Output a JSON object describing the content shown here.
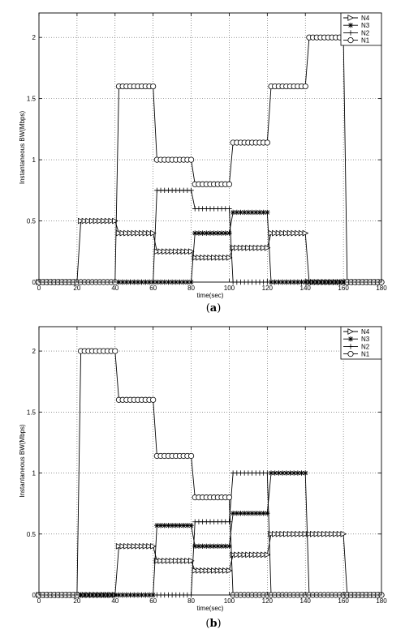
{
  "chart_data": [
    {
      "type": "line",
      "caption_open": "(",
      "caption_letter": "a",
      "caption_close": ")",
      "xlabel": "time(sec)",
      "ylabel": "Instantaneous BW(Mbps)",
      "xlim": [
        0,
        180
      ],
      "ylim": [
        0,
        2.2
      ],
      "xticks": [
        0,
        20,
        40,
        60,
        80,
        100,
        120,
        140,
        160,
        180
      ],
      "yticks": [
        0,
        0.5,
        1,
        1.5,
        2
      ],
      "ytick_labels": [
        "0",
        "0.5",
        "1",
        "1.5",
        "2"
      ],
      "grid": true,
      "legend_position": "top-right",
      "series": [
        {
          "name": "N4",
          "marker": "triangle-right",
          "points": [
            [
              0,
              0
            ],
            [
              20,
              0
            ],
            [
              22,
              0.5
            ],
            [
              40,
              0.5
            ],
            [
              42,
              0.4
            ],
            [
              60,
              0.4
            ],
            [
              62,
              0.25
            ],
            [
              80,
              0.25
            ],
            [
              82,
              0.2
            ],
            [
              100,
              0.2
            ],
            [
              102,
              0.28
            ],
            [
              120,
              0.28
            ],
            [
              122,
              0.4
            ],
            [
              140,
              0.4
            ],
            [
              142,
              0
            ],
            [
              180,
              0
            ]
          ]
        },
        {
          "name": "N3",
          "marker": "star",
          "points": [
            [
              0,
              0
            ],
            [
              80,
              0
            ],
            [
              82,
              0.4
            ],
            [
              100,
              0.4
            ],
            [
              102,
              0.57
            ],
            [
              120,
              0.57
            ],
            [
              122,
              0
            ],
            [
              180,
              0
            ]
          ]
        },
        {
          "name": "N2",
          "marker": "plus",
          "points": [
            [
              0,
              0
            ],
            [
              60,
              0
            ],
            [
              62,
              0.75
            ],
            [
              80,
              0.75
            ],
            [
              82,
              0.6
            ],
            [
              100,
              0.6
            ],
            [
              102,
              0
            ],
            [
              180,
              0
            ]
          ]
        },
        {
          "name": "N1",
          "marker": "circle",
          "points": [
            [
              0,
              0
            ],
            [
              40,
              0
            ],
            [
              42,
              1.6
            ],
            [
              60,
              1.6
            ],
            [
              62,
              1.0
            ],
            [
              80,
              1.0
            ],
            [
              82,
              0.8
            ],
            [
              100,
              0.8
            ],
            [
              102,
              1.14
            ],
            [
              120,
              1.14
            ],
            [
              122,
              1.6
            ],
            [
              140,
              1.6
            ],
            [
              142,
              2.0
            ],
            [
              160,
              2.0
            ],
            [
              162,
              0
            ],
            [
              180,
              0
            ]
          ]
        }
      ]
    },
    {
      "type": "line",
      "caption_open": "(",
      "caption_letter": "b",
      "caption_close": ")",
      "xlabel": "time(sec)",
      "ylabel": "Instantaneous BW(Mbps)",
      "xlim": [
        0,
        180
      ],
      "ylim": [
        0,
        2.2
      ],
      "xticks": [
        0,
        20,
        40,
        60,
        80,
        100,
        120,
        140,
        160,
        180
      ],
      "yticks": [
        0,
        0.5,
        1,
        1.5,
        2
      ],
      "ytick_labels": [
        "0",
        "0.5",
        "1",
        "1.5",
        "2"
      ],
      "grid": true,
      "legend_position": "top-right",
      "series": [
        {
          "name": "N4",
          "marker": "triangle-right",
          "points": [
            [
              0,
              0
            ],
            [
              40,
              0
            ],
            [
              42,
              0.4
            ],
            [
              60,
              0.4
            ],
            [
              62,
              0.28
            ],
            [
              80,
              0.28
            ],
            [
              82,
              0.2
            ],
            [
              100,
              0.2
            ],
            [
              102,
              0.33
            ],
            [
              120,
              0.33
            ],
            [
              122,
              0.5
            ],
            [
              160,
              0.5
            ],
            [
              162,
              0
            ],
            [
              180,
              0
            ]
          ]
        },
        {
          "name": "N3",
          "marker": "star",
          "points": [
            [
              0,
              0
            ],
            [
              60,
              0
            ],
            [
              62,
              0.57
            ],
            [
              80,
              0.57
            ],
            [
              82,
              0.4
            ],
            [
              100,
              0.4
            ],
            [
              102,
              0.67
            ],
            [
              120,
              0.67
            ],
            [
              122,
              1.0
            ],
            [
              140,
              1.0
            ],
            [
              142,
              0
            ],
            [
              180,
              0
            ]
          ]
        },
        {
          "name": "N2",
          "marker": "plus",
          "points": [
            [
              0,
              0
            ],
            [
              80,
              0
            ],
            [
              82,
              0.6
            ],
            [
              100,
              0.6
            ],
            [
              102,
              1.0
            ],
            [
              120,
              1.0
            ],
            [
              122,
              0
            ],
            [
              180,
              0
            ]
          ]
        },
        {
          "name": "N1",
          "marker": "circle",
          "points": [
            [
              0,
              0
            ],
            [
              20,
              0
            ],
            [
              22,
              2.0
            ],
            [
              40,
              2.0
            ],
            [
              42,
              1.6
            ],
            [
              60,
              1.6
            ],
            [
              62,
              1.14
            ],
            [
              80,
              1.14
            ],
            [
              82,
              0.8
            ],
            [
              100,
              0.8
            ],
            [
              102,
              0
            ],
            [
              180,
              0
            ]
          ]
        }
      ]
    }
  ]
}
